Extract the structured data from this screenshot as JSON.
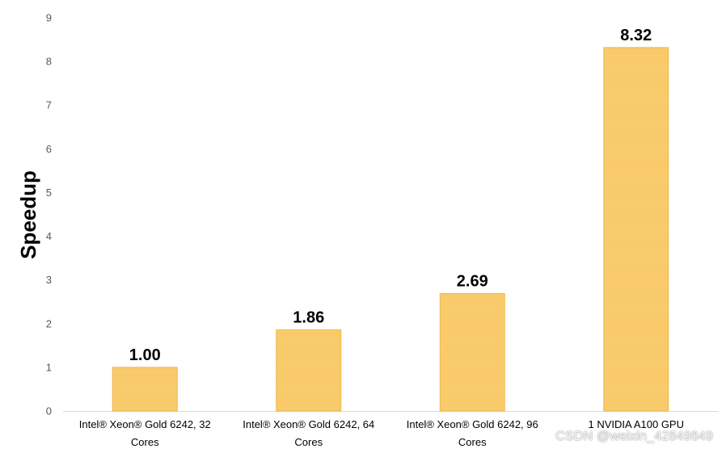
{
  "chart_data": {
    "type": "bar",
    "categories": [
      [
        "Intel® Xeon® Gold 6242, 32",
        "Cores"
      ],
      [
        "Intel® Xeon® Gold 6242, 64",
        "Cores"
      ],
      [
        "Intel® Xeon® Gold 6242, 96",
        "Cores"
      ],
      [
        "1 NVIDIA A100 GPU"
      ]
    ],
    "values": [
      1.0,
      1.86,
      2.69,
      8.32
    ],
    "data_labels": [
      "1.00",
      "1.86",
      "2.69",
      "8.32"
    ],
    "ylabel": "Speedup",
    "xlabel": "",
    "ylim": [
      0,
      9
    ],
    "yticks": [
      0,
      1,
      2,
      3,
      4,
      5,
      6,
      7,
      8,
      9
    ],
    "grid": false,
    "legend": "none",
    "colors": {
      "bar_fill": "#F9CC6E",
      "bar_stroke": "#F0B94A",
      "axis": "#D9D9D9"
    }
  },
  "watermark": "CSDN @weixin_42849849"
}
